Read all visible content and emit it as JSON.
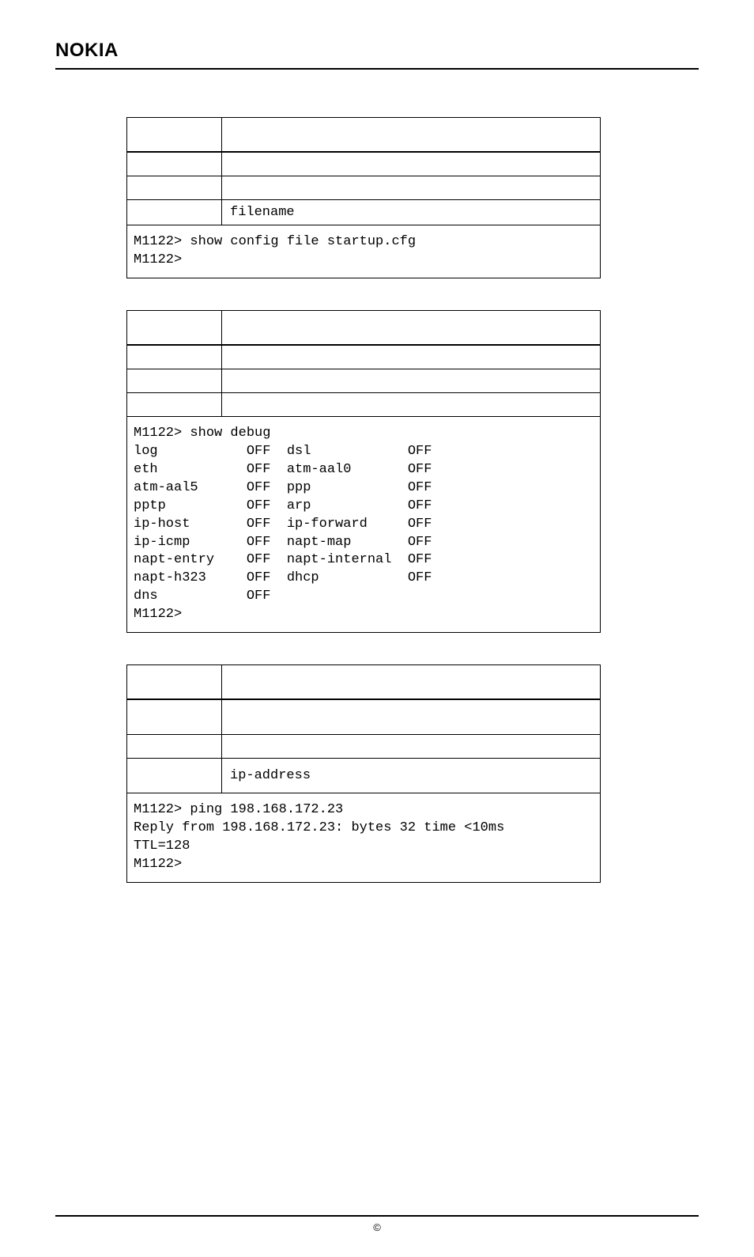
{
  "logo_text": "NOKIA",
  "block1": {
    "param": "filename",
    "example": "M1122> show config file startup.cfg\nM1122>"
  },
  "block2": {
    "example": "M1122> show debug\nlog           OFF  dsl            OFF\neth           OFF  atm-aal0       OFF\natm-aal5      OFF  ppp            OFF\npptp          OFF  arp            OFF\nip-host       OFF  ip-forward     OFF\nip-icmp       OFF  napt-map       OFF\nnapt-entry    OFF  napt-internal  OFF\nnapt-h323     OFF  dhcp           OFF\ndns           OFF\nM1122>"
  },
  "block3": {
    "param": "ip-address",
    "example": "M1122> ping 198.168.172.23\nReply from 198.168.172.23: bytes 32 time <10ms\nTTL=128\nM1122>"
  },
  "footer_symbol": "©"
}
